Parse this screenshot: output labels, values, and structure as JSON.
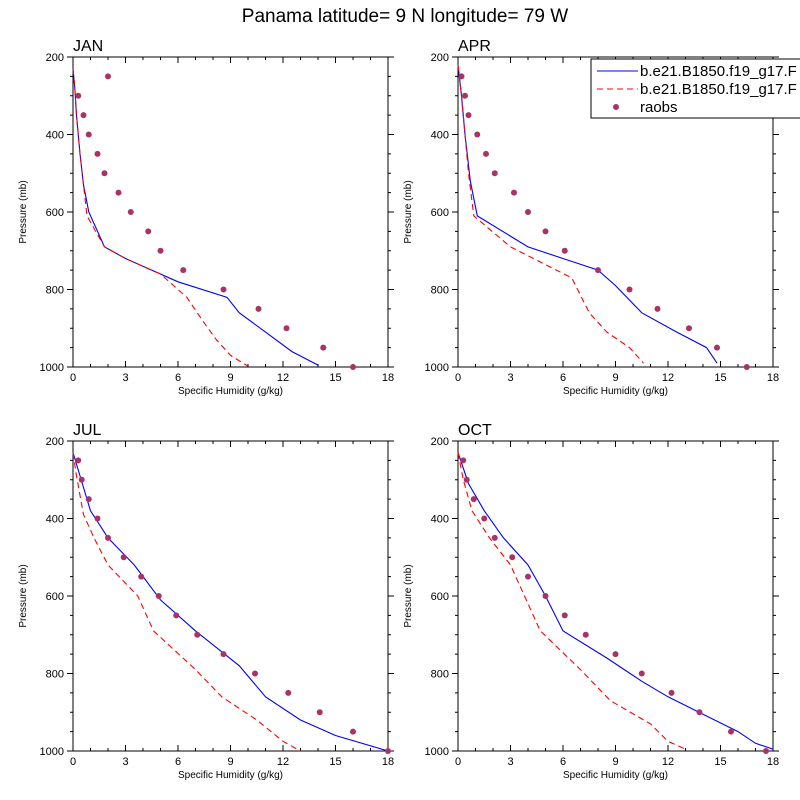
{
  "chart_data": {
    "type": "line",
    "title": "Panama  latitude= 9 N longitude= 79 W",
    "xlabel": "Specific Humidity (g/kg)",
    "ylabel": "Pressure (mb)",
    "xlim": [
      0,
      18
    ],
    "ylim": [
      1000,
      200
    ],
    "xticks": [
      "0",
      "3",
      "6",
      "9",
      "12",
      "15",
      "18"
    ],
    "yticks": [
      "200",
      "400",
      "600",
      "800",
      "1000"
    ],
    "legend": {
      "position": "top-right of APR panel",
      "entries": [
        {
          "label": "b.e21.B1850.f19_g17.F",
          "style": "solid",
          "color": "#0000ff"
        },
        {
          "label": "b.e21.B1850.f19_g17.F",
          "style": "dashed",
          "color": "#ff0000"
        },
        {
          "label": "raobs",
          "style": "marker",
          "color": "#aa3366"
        }
      ]
    },
    "panels": [
      {
        "month": "JAN",
        "series": [
          {
            "name": "b.e21.B1850.f19_g17.F (solid)",
            "points": [
              [
                0.0,
                230
              ],
              [
                0.1,
                280
              ],
              [
                0.2,
                350
              ],
              [
                0.4,
                450
              ],
              [
                0.6,
                530
              ],
              [
                0.9,
                600
              ],
              [
                1.8,
                690
              ],
              [
                3.0,
                720
              ],
              [
                6.0,
                780
              ],
              [
                8.8,
                820
              ],
              [
                9.5,
                860
              ],
              [
                11.0,
                910
              ],
              [
                12.5,
                960
              ],
              [
                14.0,
                995
              ]
            ]
          },
          {
            "name": "b.e21.B1850.f19_g17.F (dashed)",
            "points": [
              [
                0.0,
                230
              ],
              [
                0.1,
                280
              ],
              [
                0.2,
                350
              ],
              [
                0.4,
                450
              ],
              [
                0.6,
                530
              ],
              [
                0.8,
                610
              ],
              [
                1.8,
                690
              ],
              [
                3.0,
                720
              ],
              [
                5.0,
                760
              ],
              [
                6.5,
                820
              ],
              [
                7.4,
                880
              ],
              [
                8.2,
                930
              ],
              [
                9.0,
                970
              ],
              [
                10.0,
                998
              ]
            ]
          },
          {
            "name": "raobs",
            "points": [
              [
                2.0,
                250
              ],
              [
                0.3,
                300
              ],
              [
                0.6,
                350
              ],
              [
                0.9,
                400
              ],
              [
                1.4,
                450
              ],
              [
                1.8,
                500
              ],
              [
                2.6,
                550
              ],
              [
                3.3,
                600
              ],
              [
                4.3,
                650
              ],
              [
                5.0,
                700
              ],
              [
                6.3,
                750
              ],
              [
                8.6,
                800
              ],
              [
                10.6,
                850
              ],
              [
                12.2,
                900
              ],
              [
                14.3,
                950
              ],
              [
                16.0,
                1000
              ]
            ]
          }
        ]
      },
      {
        "month": "APR",
        "series": [
          {
            "name": "b.e21.B1850.f19_g17.F (solid)",
            "points": [
              [
                0.0,
                220
              ],
              [
                0.2,
                300
              ],
              [
                0.4,
                400
              ],
              [
                0.7,
                520
              ],
              [
                1.1,
                610
              ],
              [
                4.0,
                690
              ],
              [
                6.0,
                720
              ],
              [
                8.0,
                750
              ],
              [
                9.0,
                790
              ],
              [
                10.5,
                860
              ],
              [
                12.5,
                910
              ],
              [
                14.2,
                950
              ],
              [
                14.8,
                990
              ]
            ]
          },
          {
            "name": "b.e21.B1850.f19_g17.F (dashed)",
            "points": [
              [
                0.0,
                220
              ],
              [
                0.2,
                300
              ],
              [
                0.4,
                400
              ],
              [
                0.6,
                500
              ],
              [
                0.9,
                610
              ],
              [
                3.0,
                690
              ],
              [
                6.5,
                770
              ],
              [
                7.5,
                860
              ],
              [
                8.5,
                910
              ],
              [
                9.8,
                950
              ],
              [
                10.6,
                990
              ]
            ]
          },
          {
            "name": "raobs",
            "points": [
              [
                0.2,
                250
              ],
              [
                0.4,
                300
              ],
              [
                0.6,
                350
              ],
              [
                1.1,
                400
              ],
              [
                1.6,
                450
              ],
              [
                2.1,
                500
              ],
              [
                3.2,
                550
              ],
              [
                4.0,
                600
              ],
              [
                5.0,
                650
              ],
              [
                6.1,
                700
              ],
              [
                8.0,
                750
              ],
              [
                9.8,
                800
              ],
              [
                11.4,
                850
              ],
              [
                13.2,
                900
              ],
              [
                14.8,
                950
              ],
              [
                16.5,
                1000
              ]
            ]
          }
        ]
      },
      {
        "month": "JUL",
        "series": [
          {
            "name": "b.e21.B1850.f19_g17.F (solid)",
            "points": [
              [
                0.0,
                230
              ],
              [
                0.4,
                290
              ],
              [
                1.0,
                380
              ],
              [
                2.0,
                450
              ],
              [
                3.5,
                520
              ],
              [
                5.0,
                610
              ],
              [
                7.0,
                690
              ],
              [
                9.5,
                780
              ],
              [
                11.0,
                860
              ],
              [
                13.0,
                920
              ],
              [
                15.0,
                960
              ],
              [
                18.0,
                1000
              ]
            ]
          },
          {
            "name": "b.e21.B1850.f19_g17.F (dashed)",
            "points": [
              [
                0.0,
                230
              ],
              [
                0.2,
                290
              ],
              [
                0.6,
                390
              ],
              [
                1.2,
                450
              ],
              [
                2.0,
                520
              ],
              [
                3.7,
                600
              ],
              [
                4.6,
                690
              ],
              [
                7.0,
                790
              ],
              [
                8.5,
                860
              ],
              [
                10.5,
                920
              ],
              [
                12.0,
                975
              ],
              [
                13.0,
                1000
              ]
            ]
          },
          {
            "name": "raobs",
            "points": [
              [
                0.3,
                250
              ],
              [
                0.5,
                300
              ],
              [
                0.9,
                350
              ],
              [
                1.4,
                400
              ],
              [
                2.0,
                450
              ],
              [
                2.9,
                500
              ],
              [
                3.9,
                550
              ],
              [
                4.9,
                600
              ],
              [
                5.9,
                650
              ],
              [
                7.1,
                700
              ],
              [
                8.6,
                750
              ],
              [
                10.4,
                800
              ],
              [
                12.3,
                850
              ],
              [
                14.1,
                900
              ],
              [
                16.0,
                950
              ],
              [
                18.0,
                1000
              ]
            ]
          }
        ]
      },
      {
        "month": "OCT",
        "series": [
          {
            "name": "b.e21.B1850.f19_g17.F (solid)",
            "points": [
              [
                0.0,
                230
              ],
              [
                0.6,
                310
              ],
              [
                1.5,
                380
              ],
              [
                2.6,
                450
              ],
              [
                4.0,
                520
              ],
              [
                5.0,
                600
              ],
              [
                6.0,
                690
              ],
              [
                8.5,
                760
              ],
              [
                10.5,
                820
              ],
              [
                12.0,
                860
              ],
              [
                14.0,
                905
              ],
              [
                16.0,
                950
              ],
              [
                17.0,
                980
              ],
              [
                18.0,
                995
              ]
            ]
          },
          {
            "name": "b.e21.B1850.f19_g17.F (dashed)",
            "points": [
              [
                0.0,
                230
              ],
              [
                0.3,
                300
              ],
              [
                0.8,
                380
              ],
              [
                1.8,
                450
              ],
              [
                3.0,
                520
              ],
              [
                3.8,
                600
              ],
              [
                4.7,
                690
              ],
              [
                7.0,
                790
              ],
              [
                8.7,
                870
              ],
              [
                11.0,
                930
              ],
              [
                12.0,
                975
              ],
              [
                13.0,
                995
              ]
            ]
          },
          {
            "name": "raobs",
            "points": [
              [
                0.3,
                250
              ],
              [
                0.5,
                300
              ],
              [
                0.9,
                350
              ],
              [
                1.5,
                400
              ],
              [
                2.1,
                450
              ],
              [
                3.1,
                500
              ],
              [
                4.0,
                550
              ],
              [
                5.0,
                600
              ],
              [
                6.1,
                650
              ],
              [
                7.3,
                700
              ],
              [
                9.0,
                750
              ],
              [
                10.5,
                800
              ],
              [
                12.2,
                850
              ],
              [
                13.8,
                900
              ],
              [
                15.6,
                950
              ],
              [
                17.6,
                1000
              ]
            ]
          }
        ]
      }
    ]
  }
}
